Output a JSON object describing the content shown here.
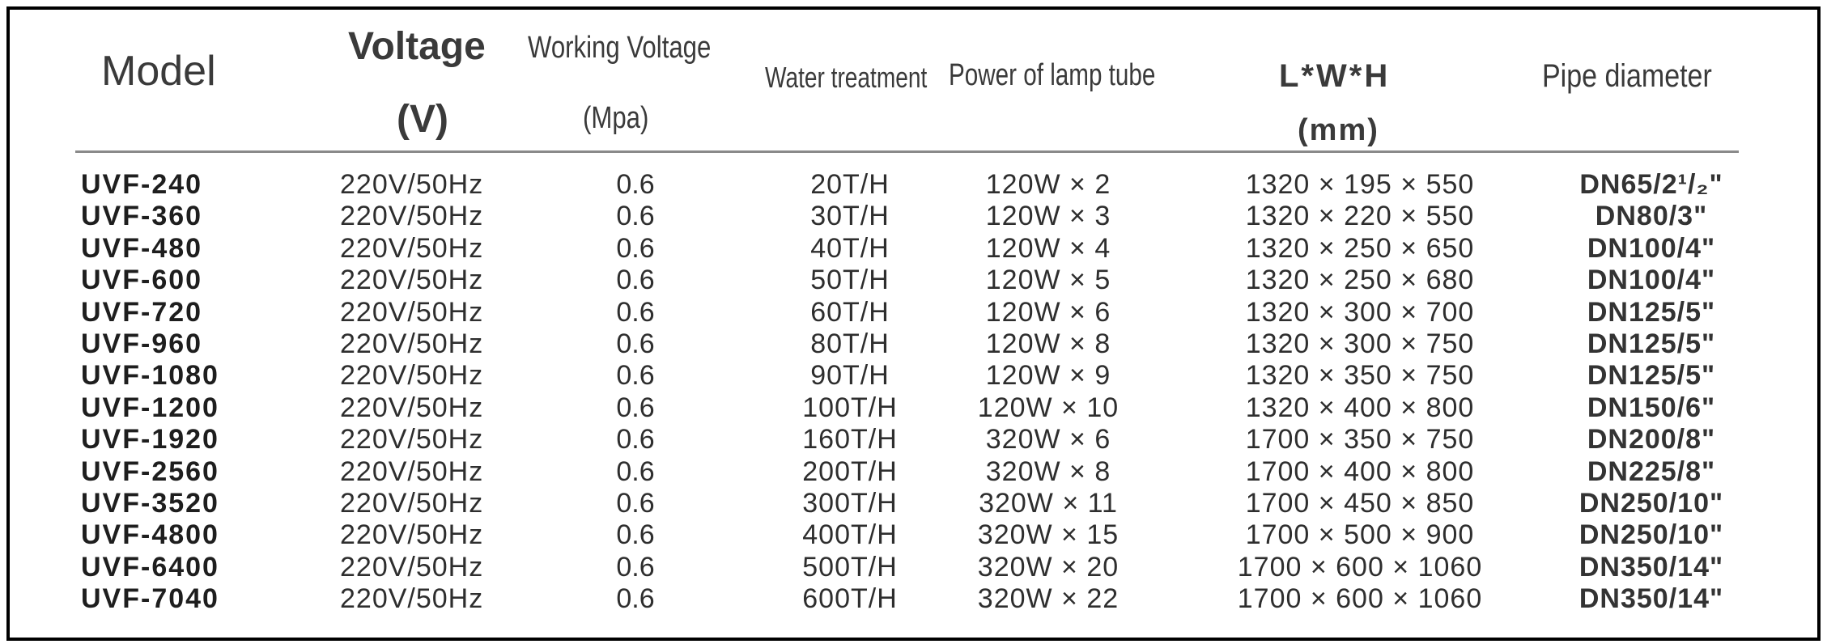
{
  "headers": {
    "model": "Model",
    "voltage_line1": "Voltage",
    "voltage_line2": "(V)",
    "working_voltage_line1": "Working Voltage",
    "working_voltage_line2": "(Mpa)",
    "water_treatment": "Water treatment",
    "power_of_lamp_tube": "Power of lamp tube",
    "dimensions_line1": "L*W*H",
    "dimensions_line2": "(mm)",
    "pipe_diameter": "Pipe diameter"
  },
  "rows": [
    {
      "model": "UVF-240",
      "voltage": "220V/50Hz",
      "pressure": "0.6",
      "water": "20T/H",
      "power": "120W × 2",
      "dims": "1320 × 195 × 550",
      "pipe": "DN65/2¹/₂\""
    },
    {
      "model": "UVF-360",
      "voltage": "220V/50Hz",
      "pressure": "0.6",
      "water": "30T/H",
      "power": "120W × 3",
      "dims": "1320 × 220 × 550",
      "pipe": "DN80/3\""
    },
    {
      "model": "UVF-480",
      "voltage": "220V/50Hz",
      "pressure": "0.6",
      "water": "40T/H",
      "power": "120W × 4",
      "dims": "1320 × 250 × 650",
      "pipe": "DN100/4\""
    },
    {
      "model": "UVF-600",
      "voltage": "220V/50Hz",
      "pressure": "0.6",
      "water": "50T/H",
      "power": "120W × 5",
      "dims": "1320 × 250 × 680",
      "pipe": "DN100/4\""
    },
    {
      "model": "UVF-720",
      "voltage": "220V/50Hz",
      "pressure": "0.6",
      "water": "60T/H",
      "power": "120W × 6",
      "dims": "1320 × 300 × 700",
      "pipe": "DN125/5\""
    },
    {
      "model": "UVF-960",
      "voltage": "220V/50Hz",
      "pressure": "0.6",
      "water": "80T/H",
      "power": "120W × 8",
      "dims": "1320 × 300 × 750",
      "pipe": "DN125/5\""
    },
    {
      "model": "UVF-1080",
      "voltage": "220V/50Hz",
      "pressure": "0.6",
      "water": "90T/H",
      "power": "120W × 9",
      "dims": "1320 × 350 × 750",
      "pipe": "DN125/5\""
    },
    {
      "model": "UVF-1200",
      "voltage": "220V/50Hz",
      "pressure": "0.6",
      "water": "100T/H",
      "power": "120W × 10",
      "dims": "1320 × 400 × 800",
      "pipe": "DN150/6\""
    },
    {
      "model": "UVF-1920",
      "voltage": "220V/50Hz",
      "pressure": "0.6",
      "water": "160T/H",
      "power": "320W × 6",
      "dims": "1700 × 350 × 750",
      "pipe": "DN200/8\""
    },
    {
      "model": "UVF-2560",
      "voltage": "220V/50Hz",
      "pressure": "0.6",
      "water": "200T/H",
      "power": "320W × 8",
      "dims": "1700 × 400 × 800",
      "pipe": "DN225/8\""
    },
    {
      "model": "UVF-3520",
      "voltage": "220V/50Hz",
      "pressure": "0.6",
      "water": "300T/H",
      "power": "320W × 11",
      "dims": "1700 × 450 × 850",
      "pipe": "DN250/10\""
    },
    {
      "model": "UVF-4800",
      "voltage": "220V/50Hz",
      "pressure": "0.6",
      "water": "400T/H",
      "power": "320W × 15",
      "dims": "1700 × 500 × 900",
      "pipe": "DN250/10\""
    },
    {
      "model": "UVF-6400",
      "voltage": "220V/50Hz",
      "pressure": "0.6",
      "water": "500T/H",
      "power": "320W × 20",
      "dims": "1700 × 600 × 1060",
      "pipe": "DN350/14\""
    },
    {
      "model": "UVF-7040",
      "voltage": "220V/50Hz",
      "pressure": "0.6",
      "water": "600T/H",
      "power": "320W × 22",
      "dims": "1700 × 600 × 1060",
      "pipe": "DN350/14\""
    }
  ]
}
